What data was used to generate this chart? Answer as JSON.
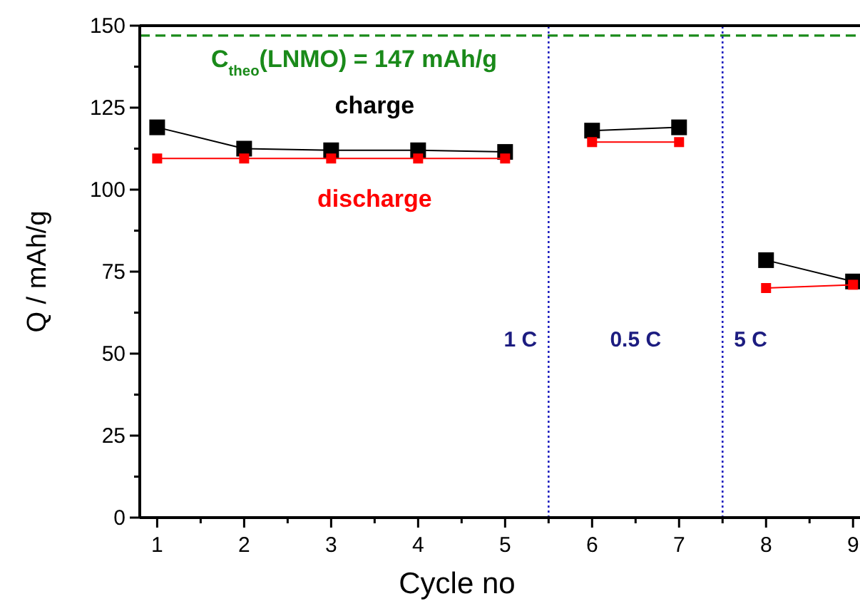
{
  "chart_data": {
    "type": "line",
    "xlabel": "Cycle no",
    "ylabel": "Q / mAh/g",
    "x": [
      1,
      2,
      3,
      4,
      5,
      5.5,
      6,
      7,
      7.5,
      8,
      9
    ],
    "series": [
      {
        "name": "charge",
        "color": "#000000",
        "values": [
          119,
          112.5,
          112,
          112,
          111.5,
          null,
          118,
          119,
          null,
          78.5,
          72
        ]
      },
      {
        "name": "discharge",
        "color": "#ff0000",
        "values": [
          109.5,
          109.5,
          109.5,
          109.5,
          109.5,
          null,
          114.5,
          114.5,
          null,
          70,
          71
        ]
      }
    ],
    "xlim": [
      0.8,
      9.08
    ],
    "xticks": [
      1,
      {
        "value": 1.5,
        "label": null
      },
      2,
      {
        "value": 2.5,
        "label": null
      },
      3,
      {
        "value": 3.5,
        "label": null
      },
      4,
      {
        "value": 4.5,
        "label": null
      },
      5,
      {
        "value": 5.5,
        "label": null
      },
      6,
      {
        "value": 6.5,
        "label": null
      },
      7,
      {
        "value": 7.5,
        "label": null
      },
      8,
      {
        "value": 8.5,
        "label": null
      },
      9
    ],
    "ylim": [
      0,
      150
    ],
    "yticks": [
      0,
      {
        "value": 12.5,
        "label": null
      },
      25,
      {
        "value": 37.5,
        "label": null
      },
      50,
      {
        "value": 62.5,
        "label": null
      },
      75,
      {
        "value": 87.5,
        "label": null
      },
      100,
      {
        "value": 112.5,
        "label": null
      },
      125,
      {
        "value": 137.5,
        "label": null
      },
      150
    ],
    "marker": "square",
    "ref_lines": [
      {
        "axis": "y",
        "value": 147,
        "label": "C$_{theo}$(LNMO) = 147 mAh/g",
        "color": "#1a8a1a",
        "line_style": "dashed"
      },
      {
        "axis": "x",
        "value": 5.5,
        "color": "#2020c0",
        "line_style": "dotted"
      },
      {
        "axis": "x",
        "value": 7.5,
        "color": "#2020c0",
        "line_style": "dotted"
      }
    ],
    "annotations": [
      "1 C",
      "0.5 C",
      "5 C"
    ]
  }
}
